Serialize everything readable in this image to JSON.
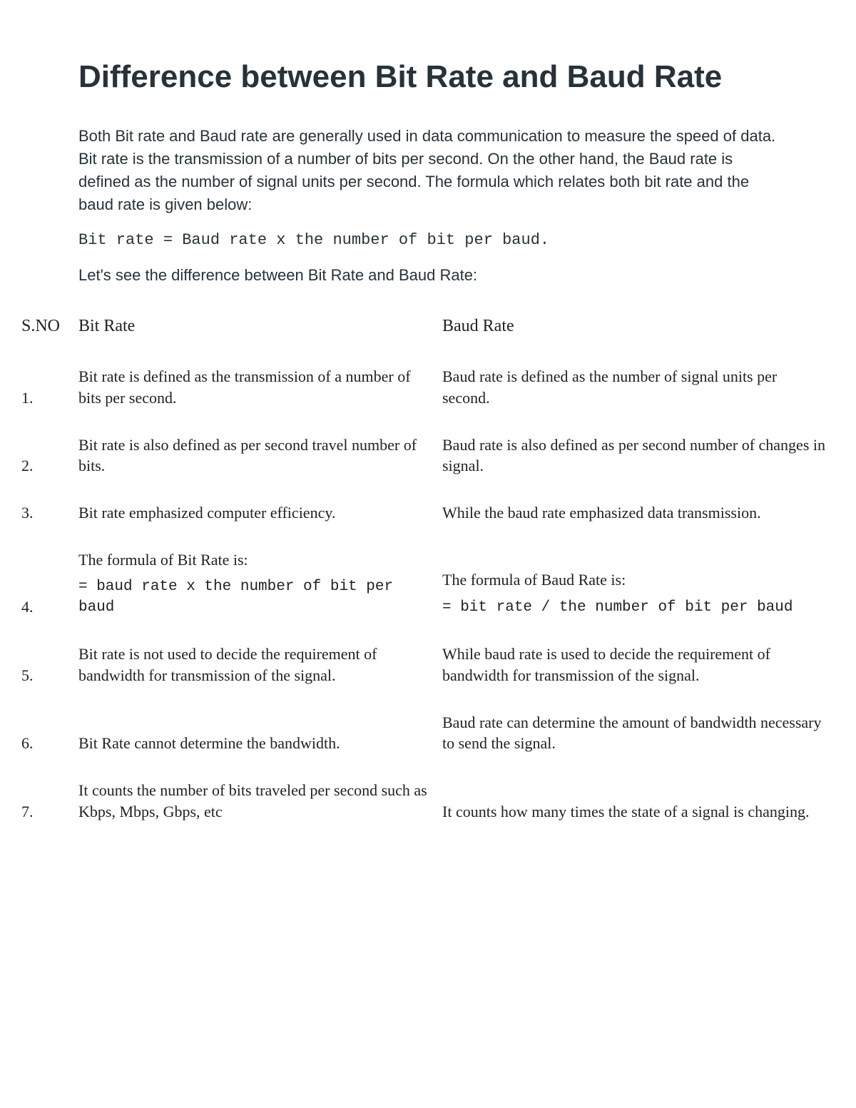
{
  "title": "Difference between Bit Rate and Baud Rate",
  "intro": "Both Bit rate and Baud rate are generally used in data communication to measure the speed of data. Bit rate is the transmission of a number of bits per second. On the other hand, the Baud rate is defined as the number of signal units per second. The formula which relates both bit rate and the baud rate is given below:",
  "formula": "Bit rate = Baud rate x the number of bit per baud.",
  "subintro": "Let's see the difference between Bit Rate and Baud Rate:",
  "columns": {
    "sno": "S.NO",
    "bit": "Bit Rate",
    "baud": "Baud Rate"
  },
  "rows": [
    {
      "sno": "1.",
      "bit": "Bit rate is defined as the transmission of a number of bits per second.",
      "baud": "Baud rate is defined as the number of signal units per second."
    },
    {
      "sno": "2.",
      "bit": "Bit rate is also defined as per second travel number of bits.",
      "baud": "Baud rate is also defined as per second number of changes in signal."
    },
    {
      "sno": "3.",
      "bit": "Bit rate emphasized computer efficiency.",
      "baud": "While the baud rate emphasized data transmission."
    },
    {
      "sno": "4.",
      "bit_label": "The formula of Bit Rate is:",
      "bit_formula": "= baud rate x the number of bit per baud",
      "baud_label": "The formula of Baud Rate is:",
      "baud_formula": "= bit rate / the number of bit per baud"
    },
    {
      "sno": "5.",
      "bit": "Bit rate is not used to decide the requirement of bandwidth for transmission of the signal.",
      "baud": "While baud rate is used to decide the requirement of bandwidth for transmission of the signal."
    },
    {
      "sno": "6.",
      "bit": "Bit Rate cannot determine the bandwidth.",
      "baud": "Baud rate can determine the amount of bandwidth necessary to send the signal."
    },
    {
      "sno": "7.",
      "bit": "It counts the number of bits traveled per second such as Kbps, Mbps, Gbps, etc",
      "baud": "It counts how many times the state of a signal is changing."
    }
  ]
}
